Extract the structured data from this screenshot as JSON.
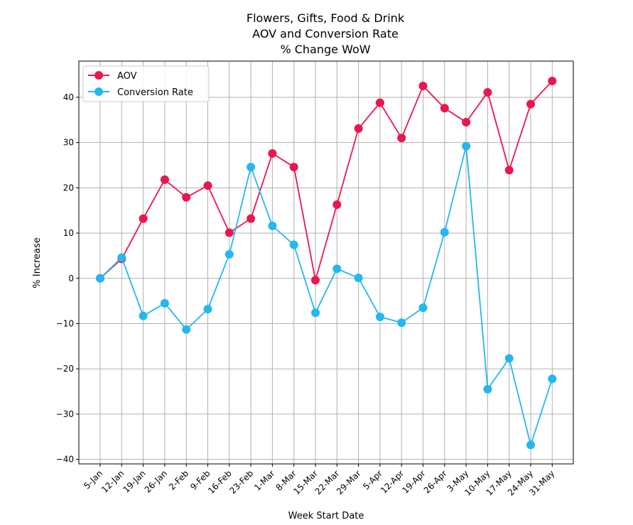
{
  "chart_data": {
    "type": "line",
    "title": "Flowers, Gifts, Food & Drink",
    "subtitle_lines": [
      "AOV and Conversion Rate",
      "% Change WoW"
    ],
    "xlabel": "Week Start Date",
    "ylabel": "% Increase",
    "x": [
      "5-Jan",
      "12-Jan",
      "19-Jan",
      "26-Jan",
      "2-Feb",
      "9-Feb",
      "16-Feb",
      "23-Feb",
      "1-Mar",
      "8-Mar",
      "15-Mar",
      "22-Mar",
      "29-Mar",
      "5-Apr",
      "12-Apr",
      "19-Apr",
      "26-Apr",
      "3-May",
      "10-May",
      "17-May",
      "24-May",
      "31-May"
    ],
    "yticks": [
      -40,
      -30,
      -20,
      -10,
      0,
      10,
      20,
      30,
      40
    ],
    "ylim": [
      -41,
      48
    ],
    "grid": true,
    "legend_position": "top-left",
    "series": [
      {
        "name": "AOV",
        "color": "#e8174f",
        "values": [
          0.0,
          4.3,
          13.2,
          21.8,
          17.9,
          20.5,
          10.1,
          13.2,
          27.6,
          24.6,
          -0.4,
          16.3,
          33.1,
          38.8,
          31.0,
          42.5,
          37.6,
          34.5,
          41.1,
          23.9,
          38.5,
          43.6
        ]
      },
      {
        "name": "Conversion Rate",
        "color": "#23b8ee",
        "values": [
          0.0,
          4.6,
          -8.3,
          -5.5,
          -11.3,
          -6.8,
          5.3,
          24.6,
          11.6,
          7.4,
          -7.6,
          2.1,
          0.1,
          -8.5,
          -9.8,
          -6.5,
          10.2,
          29.2,
          -24.5,
          -17.7,
          -36.8,
          -22.2
        ]
      }
    ]
  }
}
